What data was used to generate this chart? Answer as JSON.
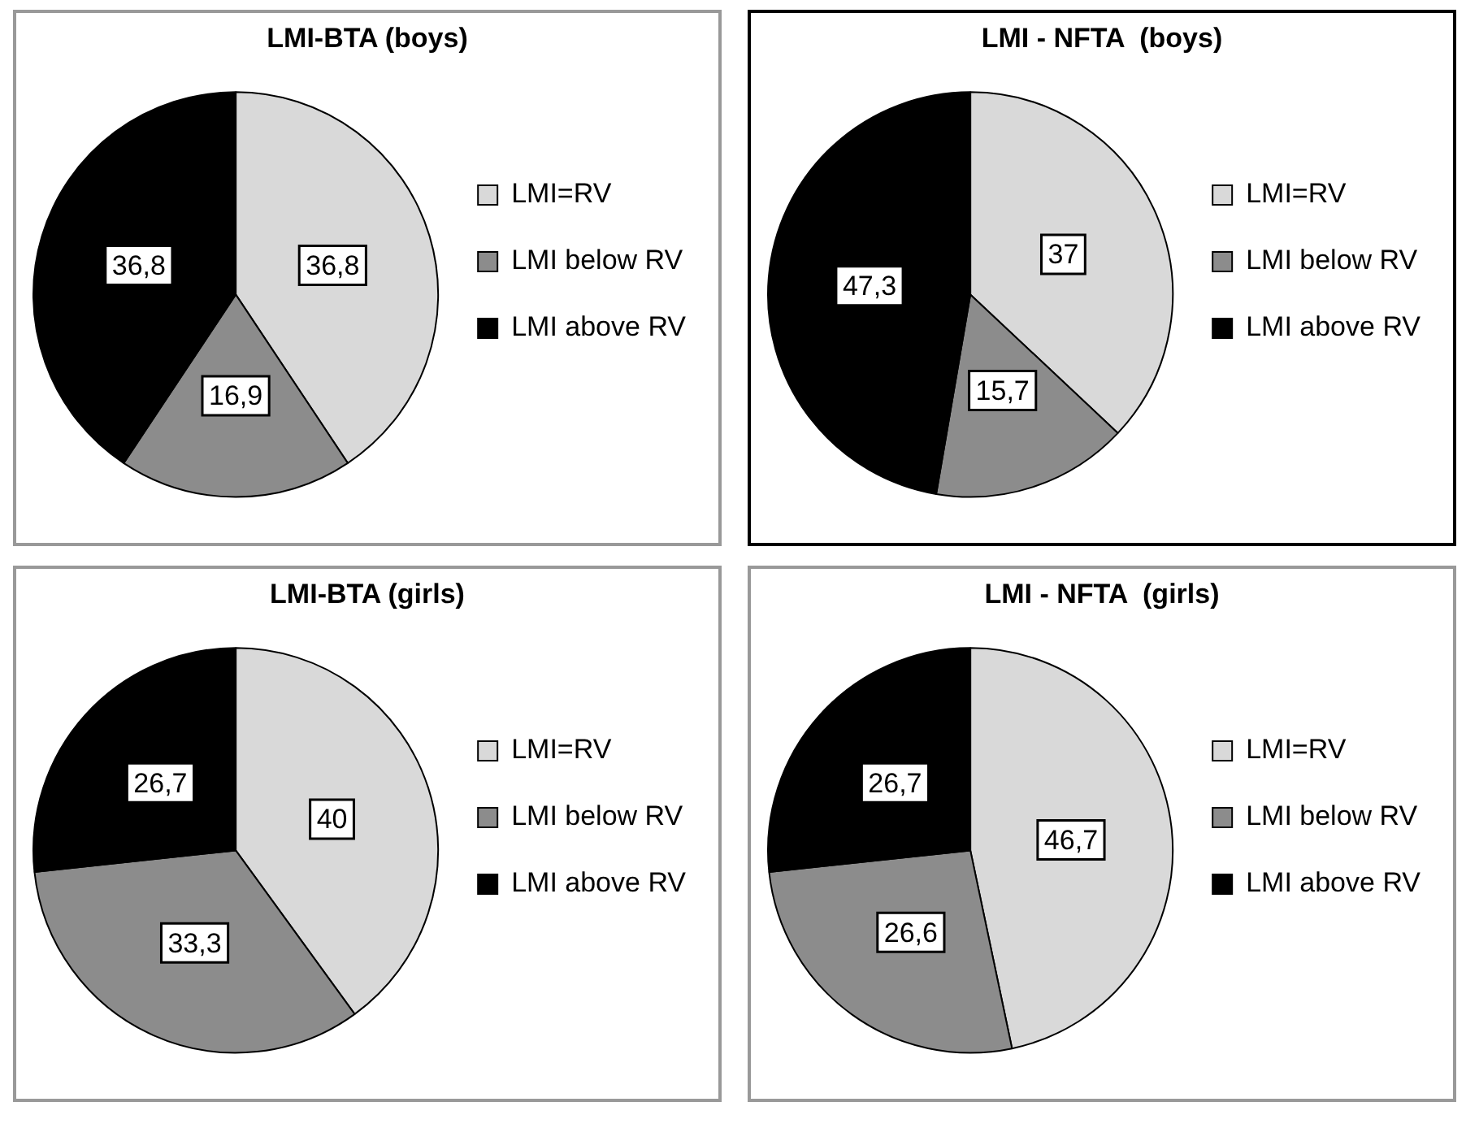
{
  "chart_data": [
    {
      "type": "pie",
      "title": "LMI-BTA (boys)",
      "categories": [
        "LMI=RV",
        "LMI below RV",
        "LMI above RV"
      ],
      "values": [
        36.8,
        16.9,
        36.8
      ],
      "value_labels": [
        "36,8",
        "16,9",
        "36,8"
      ],
      "colors": [
        "#d9d9d9",
        "#8c8c8c",
        "#000000"
      ],
      "legend": "right"
    },
    {
      "type": "pie",
      "title": "LMI - NFTA  (boys)",
      "categories": [
        "LMI=RV",
        "LMI below RV",
        "LMI above RV"
      ],
      "values": [
        37,
        15.7,
        47.3
      ],
      "value_labels": [
        "37",
        "15,7",
        "47,3"
      ],
      "colors": [
        "#d9d9d9",
        "#8c8c8c",
        "#000000"
      ],
      "legend": "right"
    },
    {
      "type": "pie",
      "title": "LMI-BTA (girls)",
      "categories": [
        "LMI=RV",
        "LMI below RV",
        "LMI above RV"
      ],
      "values": [
        40,
        33.3,
        26.7
      ],
      "value_labels": [
        "40",
        "33,3",
        "26,7"
      ],
      "colors": [
        "#d9d9d9",
        "#8c8c8c",
        "#000000"
      ],
      "legend": "right"
    },
    {
      "type": "pie",
      "title": "LMI - NFTA  (girls)",
      "categories": [
        "LMI=RV",
        "LMI below RV",
        "LMI above RV"
      ],
      "values": [
        46.7,
        26.6,
        26.7
      ],
      "value_labels": [
        "46,7",
        "26,6",
        "26,7"
      ],
      "colors": [
        "#d9d9d9",
        "#8c8c8c",
        "#000000"
      ],
      "legend": "right"
    }
  ]
}
